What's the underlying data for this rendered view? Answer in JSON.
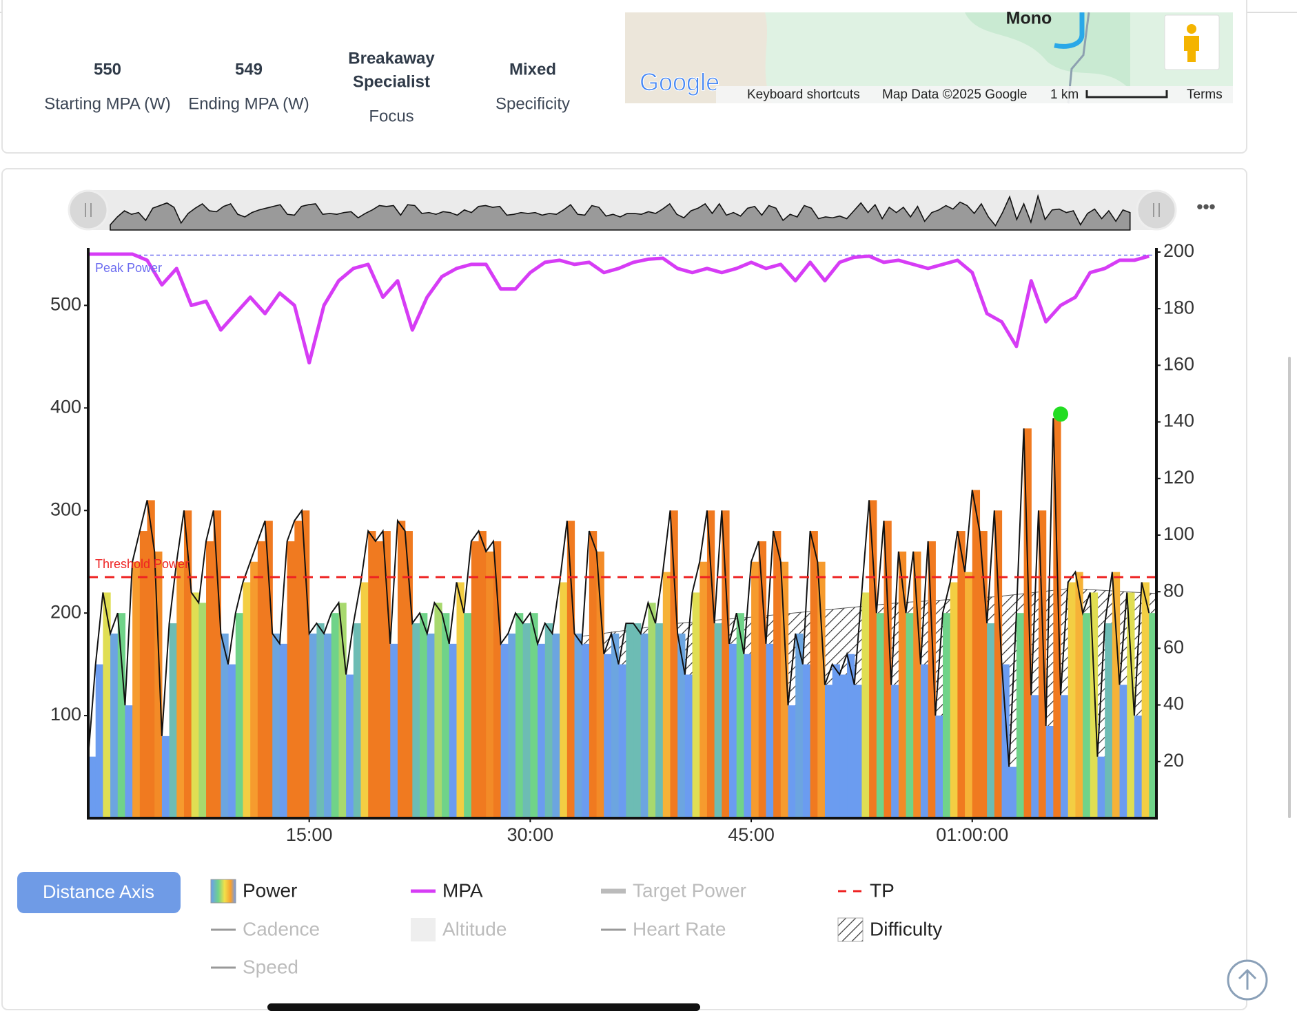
{
  "stats": [
    {
      "value": "550",
      "label": "Starting MPA (W)"
    },
    {
      "value": "549",
      "label": "Ending MPA (W)"
    },
    {
      "value": [
        "Breakaway",
        "Specialist"
      ],
      "label": "Focus"
    },
    {
      "value": "Mixed",
      "label": "Specificity"
    }
  ],
  "map": {
    "place": "Mono",
    "logo": "Google",
    "links": [
      "Keyboard shortcuts",
      "Map Data ©2025 Google",
      "1 km",
      "Terms"
    ]
  },
  "ui": {
    "button": "Distance Axis",
    "menu": "•••"
  },
  "legend": [
    {
      "name": "Power",
      "style": "gradient",
      "color": "#f39a2e",
      "active": true
    },
    {
      "name": "MPA",
      "style": "line",
      "color": "#d63cf5",
      "active": true
    },
    {
      "name": "Target Power",
      "style": "thick",
      "color": "#bbbbbb",
      "active": false
    },
    {
      "name": "TP",
      "style": "dashed",
      "color": "#ee2222",
      "active": true
    },
    {
      "name": "Cadence",
      "style": "line",
      "color": "#999999",
      "active": false
    },
    {
      "name": "Altitude",
      "style": "box",
      "color": "#eeeeee",
      "active": false
    },
    {
      "name": "Heart Rate",
      "style": "line",
      "color": "#999999",
      "active": false
    },
    {
      "name": "Difficulty",
      "style": "hatch",
      "color": "#555555",
      "active": true
    },
    {
      "name": "Speed",
      "style": "line",
      "color": "#999999",
      "active": false
    }
  ],
  "chart_data": {
    "type": "combo",
    "xlim": [
      0,
      4350
    ],
    "xticks": [
      {
        "value": 900,
        "label": "15:00"
      },
      {
        "value": 1800,
        "label": "30:00"
      },
      {
        "value": 2700,
        "label": "45:00"
      },
      {
        "value": 3600,
        "label": "01:00:00"
      }
    ],
    "ylim": [
      0,
      552
    ],
    "yticks": [
      100,
      200,
      300,
      400,
      500
    ],
    "y2lim": [
      0,
      200
    ],
    "y2ticks": [
      20,
      40,
      60,
      80,
      100,
      120,
      140,
      160,
      180,
      200
    ],
    "color_scale": [
      "#6b9cf0",
      "#6fd38a",
      "#f2e04a",
      "#f7a030",
      "#f07a20"
    ],
    "series": [
      {
        "name": "Power",
        "type": "bar",
        "x": [
          0,
          30,
          60,
          90,
          120,
          150,
          180,
          210,
          240,
          270,
          300,
          330,
          360,
          390,
          420,
          450,
          480,
          510,
          540,
          570,
          600,
          630,
          660,
          690,
          720,
          750,
          780,
          810,
          840,
          870,
          900,
          930,
          960,
          990,
          1020,
          1050,
          1080,
          1110,
          1140,
          1170,
          1200,
          1230,
          1260,
          1290,
          1320,
          1350,
          1380,
          1410,
          1440,
          1470,
          1500,
          1530,
          1560,
          1590,
          1620,
          1650,
          1680,
          1710,
          1740,
          1770,
          1800,
          1830,
          1860,
          1890,
          1920,
          1950,
          1980,
          2010,
          2040,
          2070,
          2100,
          2130,
          2160,
          2190,
          2220,
          2250,
          2280,
          2310,
          2340,
          2370,
          2400,
          2430,
          2460,
          2490,
          2520,
          2550,
          2580,
          2610,
          2640,
          2670,
          2700,
          2730,
          2760,
          2790,
          2820,
          2850,
          2880,
          2910,
          2940,
          2970,
          3000,
          3030,
          3060,
          3090,
          3120,
          3150,
          3180,
          3210,
          3240,
          3270,
          3300,
          3330,
          3360,
          3390,
          3420,
          3450,
          3480,
          3510,
          3540,
          3570,
          3600,
          3630,
          3660,
          3690,
          3720,
          3750,
          3780,
          3810,
          3840,
          3870,
          3900,
          3930,
          3960,
          3990,
          4020,
          4050,
          4080,
          4110,
          4140,
          4170,
          4200,
          4230,
          4260,
          4290,
          4320
        ],
        "values": [
          60,
          150,
          220,
          180,
          200,
          110,
          250,
          280,
          310,
          260,
          80,
          190,
          250,
          300,
          220,
          210,
          270,
          300,
          180,
          150,
          200,
          230,
          250,
          270,
          290,
          180,
          170,
          270,
          290,
          300,
          180,
          190,
          180,
          200,
          210,
          140,
          190,
          230,
          280,
          270,
          280,
          170,
          290,
          280,
          190,
          200,
          180,
          210,
          200,
          170,
          230,
          200,
          270,
          280,
          260,
          270,
          170,
          180,
          200,
          190,
          200,
          170,
          190,
          180,
          230,
          290,
          180,
          170,
          280,
          260,
          160,
          180,
          150,
          190,
          190,
          180,
          210,
          190,
          240,
          300,
          180,
          140,
          220,
          250,
          300,
          190,
          300,
          170,
          200,
          160,
          250,
          270,
          170,
          280,
          250,
          110,
          180,
          150,
          280,
          250,
          130,
          150,
          140,
          160,
          130,
          220,
          310,
          200,
          290,
          130,
          260,
          200,
          260,
          150,
          270,
          100,
          200,
          230,
          280,
          240,
          320,
          280,
          190,
          300,
          150,
          50,
          200,
          380,
          120,
          300,
          90,
          390,
          120,
          230,
          240,
          200,
          220,
          60,
          190,
          240,
          130,
          220,
          100,
          230,
          200
        ]
      },
      {
        "name": "Difficulty",
        "type": "hatch",
        "color": "#555555",
        "x": [
          2000,
          2400,
          2700,
          3000,
          3300,
          3700,
          4000,
          4350
        ],
        "values": [
          177,
          190,
          196,
          203,
          210,
          216,
          224,
          219
        ]
      },
      {
        "name": "MPA",
        "type": "line",
        "color": "#d63cf5",
        "x": [
          0,
          60,
          120,
          180,
          240,
          300,
          360,
          420,
          480,
          540,
          600,
          660,
          720,
          780,
          840,
          900,
          960,
          1020,
          1080,
          1140,
          1200,
          1260,
          1320,
          1380,
          1440,
          1500,
          1560,
          1620,
          1680,
          1740,
          1800,
          1860,
          1920,
          1980,
          2040,
          2100,
          2160,
          2220,
          2280,
          2340,
          2400,
          2460,
          2520,
          2580,
          2640,
          2700,
          2760,
          2820,
          2880,
          2940,
          3000,
          3060,
          3120,
          3180,
          3240,
          3300,
          3360,
          3420,
          3480,
          3540,
          3600,
          3660,
          3720,
          3780,
          3840,
          3900,
          3960,
          4020,
          4080,
          4140,
          4200,
          4260,
          4320
        ],
        "values": [
          550,
          550,
          550,
          550,
          544,
          520,
          536,
          500,
          504,
          476,
          492,
          508,
          492,
          512,
          500,
          444,
          500,
          524,
          536,
          540,
          508,
          524,
          476,
          508,
          528,
          536,
          540,
          540,
          516,
          516,
          532,
          542,
          544,
          540,
          542,
          532,
          536,
          542,
          545,
          546,
          536,
          532,
          536,
          532,
          536,
          542,
          536,
          540,
          524,
          542,
          524,
          542,
          547,
          548,
          542,
          544,
          540,
          536,
          540,
          544,
          532,
          492,
          484,
          460,
          524,
          484,
          500,
          508,
          532,
          536,
          544,
          544,
          548
        ]
      }
    ],
    "reference_lines": [
      {
        "label": "Peak Power",
        "value": 549,
        "color": "#6b6bf0"
      },
      {
        "label": "Threshold Power",
        "value": 235,
        "color": "#ee2222"
      }
    ],
    "max_point": {
      "x": 3960,
      "y": 394,
      "color": "#22dd22"
    }
  }
}
